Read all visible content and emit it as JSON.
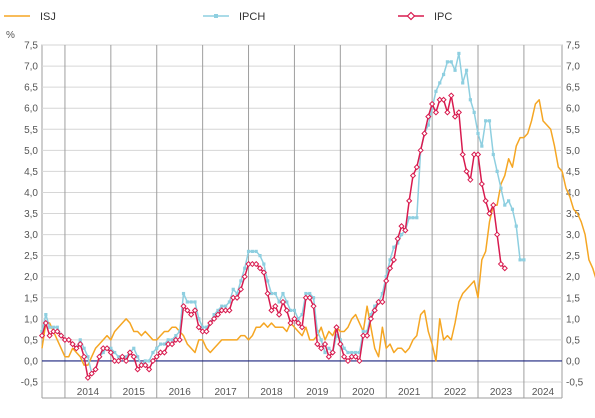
{
  "chart_data": {
    "type": "line",
    "ylabel": "%",
    "ylim": [
      -0.5,
      7.5
    ],
    "yticks": [
      -0.5,
      0.0,
      0.5,
      1.0,
      1.5,
      2.0,
      2.5,
      3.0,
      3.5,
      4.0,
      4.5,
      5.0,
      5.5,
      6.0,
      6.5,
      7.0,
      7.5
    ],
    "ytick_labels": [
      "-0,5",
      "0,0",
      "0,5",
      "1,0",
      "1,5",
      "2,0",
      "2,5",
      "3,0",
      "3,5",
      "4,0",
      "4,5",
      "5,0",
      "5,5",
      "6,0",
      "6,5",
      "7,0",
      "7,5"
    ],
    "xlim": [
      2013.5,
      2024.83
    ],
    "year_labels": [
      "2014",
      "2015",
      "2016",
      "2017",
      "2018",
      "2019",
      "2020",
      "2021",
      "2022",
      "2023",
      "2024"
    ],
    "grid": true,
    "legend_position": "top",
    "zero_line_color": "#1a237e",
    "series": [
      {
        "name": "ISJ",
        "color": "#f5a623",
        "marker": "none",
        "x_start": 2013.5,
        "x_step": 0.083333,
        "values": [
          0.3,
          0.9,
          0.9,
          0.7,
          0.5,
          0.3,
          0.1,
          0.1,
          0.3,
          0.2,
          0.1,
          -0.1,
          -0.1,
          0.1,
          0.3,
          0.4,
          0.5,
          0.6,
          0.5,
          0.7,
          0.8,
          0.9,
          1.0,
          0.9,
          0.7,
          0.7,
          0.6,
          0.7,
          0.6,
          0.5,
          0.5,
          0.6,
          0.7,
          0.7,
          0.8,
          0.8,
          0.7,
          0.6,
          0.4,
          0.3,
          0.2,
          0.5,
          0.5,
          0.3,
          0.2,
          0.3,
          0.4,
          0.5,
          0.5,
          0.5,
          0.5,
          0.5,
          0.6,
          0.6,
          0.5,
          0.6,
          0.8,
          0.8,
          0.9,
          0.8,
          0.9,
          0.8,
          0.8,
          0.8,
          0.7,
          0.9,
          0.8,
          0.7,
          0.6,
          0.8,
          0.5,
          0.5,
          0.6,
          0.8,
          0.5,
          0.7,
          0.6,
          0.8,
          0.7,
          0.7,
          0.8,
          1.0,
          1.1,
          0.9,
          0.7,
          1.3,
          0.8,
          0.3,
          0.1,
          0.8,
          0.3,
          0.4,
          0.2,
          0.3,
          0.3,
          0.2,
          0.3,
          0.5,
          0.6,
          1.1,
          1.2,
          0.7,
          0.4,
          0.0,
          1.0,
          0.5,
          0.6,
          0.5,
          0.9,
          1.4,
          1.6,
          1.7,
          1.8,
          1.9,
          1.5,
          2.4,
          2.6,
          3.3,
          3.7,
          3.7,
          4.2,
          4.4,
          4.8,
          4.6,
          5.1,
          5.3,
          5.3,
          5.4,
          5.7,
          6.1,
          6.2,
          5.7,
          5.6,
          5.5,
          5.1,
          4.6,
          4.5,
          4.1,
          3.9,
          3.6,
          3.5,
          3.3,
          3.0,
          2.4,
          2.2,
          1.9
        ]
      },
      {
        "name": "IPCH",
        "color": "#8ecfe0",
        "marker": "square",
        "x_start": 2013.5,
        "x_step": 0.083333,
        "values": [
          0.7,
          1.1,
          0.8,
          0.8,
          0.8,
          0.6,
          0.5,
          0.5,
          0.4,
          0.3,
          0.5,
          0.3,
          0.1,
          -0.3,
          -0.2,
          0.1,
          0.2,
          0.3,
          0.3,
          0.2,
          0.1,
          0.1,
          0.1,
          0.2,
          0.3,
          0.1,
          -0.1,
          0.0,
          0.0,
          0.2,
          0.3,
          0.4,
          0.4,
          0.5,
          0.5,
          0.6,
          0.7,
          1.6,
          1.4,
          1.4,
          1.4,
          1.0,
          0.8,
          0.8,
          0.9,
          1.1,
          1.2,
          1.3,
          1.3,
          1.4,
          1.7,
          1.6,
          1.9,
          2.2,
          2.6,
          2.6,
          2.6,
          2.5,
          2.3,
          1.9,
          1.6,
          1.6,
          1.4,
          1.6,
          1.4,
          1.2,
          1.2,
          1.0,
          1.1,
          1.6,
          1.6,
          1.5,
          0.7,
          0.5,
          0.2,
          0.3,
          0.2,
          0.6,
          0.5,
          0.3,
          0.2,
          0.2,
          0.2,
          0.2,
          0.7,
          0.7,
          1.1,
          1.3,
          1.4,
          1.6,
          2.0,
          2.4,
          2.7,
          2.8,
          3.0,
          3.1,
          3.4,
          3.4,
          3.4,
          5.0,
          5.4,
          5.6,
          6.0,
          6.4,
          6.6,
          6.8,
          7.1,
          7.1,
          6.9,
          7.3,
          6.6,
          6.9,
          6.2,
          5.9,
          5.4,
          5.1,
          5.7,
          5.7,
          4.9,
          4.5,
          4.1,
          3.7,
          3.8,
          3.6,
          3.2,
          2.4,
          2.4
        ]
      },
      {
        "name": "IPC",
        "color": "#d81b4f",
        "marker": "diamond",
        "x_start": 2013.5,
        "x_step": 0.083333,
        "values": [
          0.6,
          0.9,
          0.6,
          0.7,
          0.7,
          0.6,
          0.5,
          0.5,
          0.4,
          0.3,
          0.4,
          0.1,
          -0.4,
          -0.3,
          -0.2,
          0.1,
          0.3,
          0.3,
          0.2,
          0.0,
          0.0,
          0.1,
          0.0,
          0.2,
          0.1,
          -0.2,
          -0.1,
          -0.1,
          -0.2,
          0.0,
          0.1,
          0.2,
          0.2,
          0.4,
          0.4,
          0.5,
          0.5,
          1.3,
          1.2,
          1.1,
          1.2,
          0.8,
          0.7,
          0.7,
          0.9,
          1.0,
          1.1,
          1.2,
          1.2,
          1.2,
          1.5,
          1.5,
          1.7,
          2.0,
          2.3,
          2.3,
          2.3,
          2.2,
          2.1,
          1.6,
          1.2,
          1.3,
          1.1,
          1.4,
          1.2,
          0.9,
          1.0,
          0.9,
          0.8,
          1.5,
          1.5,
          1.3,
          0.4,
          0.3,
          0.4,
          0.1,
          0.2,
          0.8,
          0.4,
          0.1,
          0.0,
          0.1,
          0.1,
          0.0,
          0.6,
          0.6,
          1.0,
          1.2,
          1.4,
          1.4,
          1.9,
          2.2,
          2.4,
          2.9,
          3.2,
          3.1,
          3.8,
          4.4,
          4.6,
          5.0,
          5.4,
          5.8,
          6.1,
          5.9,
          6.2,
          6.2,
          5.9,
          6.3,
          5.8,
          5.9,
          4.9,
          4.5,
          4.3,
          4.9,
          4.9,
          4.2,
          3.8,
          3.5,
          3.7,
          3.0,
          2.3,
          2.2
        ]
      }
    ]
  }
}
